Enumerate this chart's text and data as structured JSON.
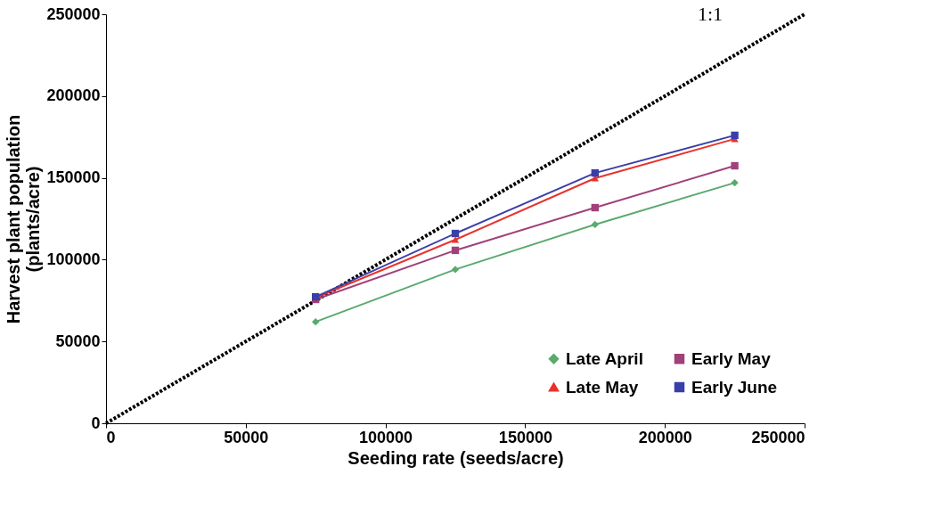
{
  "chart_data": {
    "type": "line",
    "xlabel": "Seeding rate (seeds/acre)",
    "ylabel": "Harvest plant population\n(plants/acre)",
    "x": [
      75000,
      125000,
      175000,
      225000
    ],
    "series": [
      {
        "name": "Late April",
        "color": "#5aaa6e",
        "marker": "diamond",
        "values": [
          62000,
          94000,
          121500,
          147000
        ]
      },
      {
        "name": "Early May",
        "color": "#a0417a",
        "marker": "square",
        "values": [
          75700,
          105700,
          131800,
          157400
        ]
      },
      {
        "name": "Late May",
        "color": "#e8322a",
        "marker": "triangle",
        "values": [
          76800,
          112200,
          149800,
          173800
        ]
      },
      {
        "name": "Early June",
        "color": "#3a3fa8",
        "marker": "square",
        "values": [
          77300,
          116000,
          153000,
          176000
        ]
      },
      {
        "name": "1:1",
        "color": "#000000",
        "marker": "none",
        "line_style": "dotted",
        "x": [
          0,
          250000
        ],
        "values": [
          0,
          250000
        ]
      }
    ],
    "xlim": [
      0,
      250000
    ],
    "xticks": [
      0,
      50000,
      100000,
      150000,
      200000,
      250000
    ],
    "ylim": [
      0,
      250000
    ],
    "yticks": [
      0,
      50000,
      100000,
      150000,
      200000,
      250000
    ],
    "grid": false,
    "legend": "bottom right"
  }
}
